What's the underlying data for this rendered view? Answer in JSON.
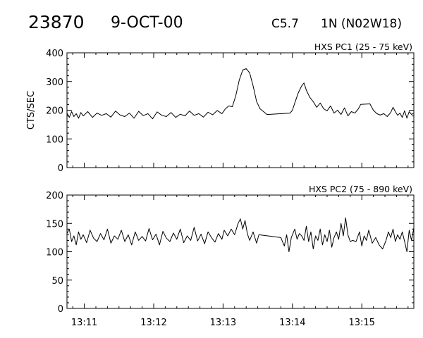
{
  "header": {
    "event_number": "23870",
    "date": "9-OCT-00",
    "goes_class": "C5.7",
    "location": "1N (N02W18)"
  },
  "chart_data": [
    {
      "type": "line",
      "title": "HXS PC1 (25 - 75 keV)",
      "xlabel": "",
      "ylabel": "CTS/SEC",
      "xlim": [
        "13:10:45",
        "13:15:45"
      ],
      "ylim": [
        0,
        400
      ],
      "yticks": [
        0,
        100,
        200,
        300,
        400
      ],
      "xtick_labels": [
        "13:11",
        "13:12",
        "13:13",
        "13:14",
        "13:15"
      ],
      "series": [
        {
          "points": [
            [
              "13:10:45",
              190
            ],
            [
              "13:10:47",
              175
            ],
            [
              "13:10:49",
              195
            ],
            [
              "13:10:51",
              178
            ],
            [
              "13:10:53",
              188
            ],
            [
              "13:10:55",
              172
            ],
            [
              "13:10:57",
              192
            ],
            [
              "13:10:59",
              180
            ],
            [
              "13:11:03",
              195
            ],
            [
              "13:11:07",
              175
            ],
            [
              "13:11:11",
              190
            ],
            [
              "13:11:15",
              182
            ],
            [
              "13:11:19",
              188
            ],
            [
              "13:11:23",
              176
            ],
            [
              "13:11:27",
              197
            ],
            [
              "13:11:31",
              183
            ],
            [
              "13:11:35",
              178
            ],
            [
              "13:11:39",
              190
            ],
            [
              "13:11:43",
              172
            ],
            [
              "13:11:47",
              196
            ],
            [
              "13:11:51",
              181
            ],
            [
              "13:11:55",
              188
            ],
            [
              "13:11:59",
              170
            ],
            [
              "13:12:03",
              194
            ],
            [
              "13:12:07",
              182
            ],
            [
              "13:12:11",
              178
            ],
            [
              "13:12:15",
              192
            ],
            [
              "13:12:19",
              175
            ],
            [
              "13:12:23",
              186
            ],
            [
              "13:12:27",
              180
            ],
            [
              "13:12:31",
              197
            ],
            [
              "13:12:35",
              182
            ],
            [
              "13:12:39",
              188
            ],
            [
              "13:12:43",
              176
            ],
            [
              "13:12:47",
              193
            ],
            [
              "13:12:51",
              184
            ],
            [
              "13:12:55",
              199
            ],
            [
              "13:12:59",
              188
            ],
            [
              "13:13:02",
              205
            ],
            [
              "13:13:05",
              215
            ],
            [
              "13:13:08",
              212
            ],
            [
              "13:13:11",
              250
            ],
            [
              "13:13:14",
              305
            ],
            [
              "13:13:17",
              340
            ],
            [
              "13:13:20",
              345
            ],
            [
              "13:13:23",
              330
            ],
            [
              "13:13:26",
              285
            ],
            [
              "13:13:29",
              230
            ],
            [
              "13:13:32",
              205
            ],
            [
              "13:13:35",
              195
            ],
            [
              "13:13:38",
              185
            ],
            [
              "13:13:58",
              190
            ],
            [
              "13:14:00",
              200
            ],
            [
              "13:14:02",
              225
            ],
            [
              "13:14:05",
              260
            ],
            [
              "13:14:08",
              285
            ],
            [
              "13:14:10",
              295
            ],
            [
              "13:14:12",
              270
            ],
            [
              "13:14:15",
              245
            ],
            [
              "13:14:18",
              230
            ],
            [
              "13:14:21",
              210
            ],
            [
              "13:14:24",
              225
            ],
            [
              "13:14:27",
              205
            ],
            [
              "13:14:30",
              198
            ],
            [
              "13:14:33",
              215
            ],
            [
              "13:14:36",
              190
            ],
            [
              "13:14:39",
              200
            ],
            [
              "13:14:42",
              185
            ],
            [
              "13:14:45",
              208
            ],
            [
              "13:14:48",
              180
            ],
            [
              "13:14:51",
              195
            ],
            [
              "13:14:54",
              190
            ],
            [
              "13:14:57",
              205
            ],
            [
              "13:14:59",
              220
            ],
            [
              "13:15:07",
              222
            ],
            [
              "13:15:10",
              200
            ],
            [
              "13:15:13",
              188
            ],
            [
              "13:15:16",
              183
            ],
            [
              "13:15:19",
              188
            ],
            [
              "13:15:22",
              178
            ],
            [
              "13:15:25",
              192
            ],
            [
              "13:15:27",
              210
            ],
            [
              "13:15:29",
              195
            ],
            [
              "13:15:31",
              182
            ],
            [
              "13:15:33",
              190
            ],
            [
              "13:15:35",
              175
            ],
            [
              "13:15:37",
              198
            ],
            [
              "13:15:39",
              172
            ],
            [
              "13:15:41",
              195
            ],
            [
              "13:15:43",
              185
            ],
            [
              "13:15:45",
              190
            ]
          ]
        }
      ]
    },
    {
      "type": "line",
      "title": "HXS PC2 (75 - 890 keV)",
      "xlabel": "",
      "ylabel": "",
      "xlim": [
        "13:10:45",
        "13:15:45"
      ],
      "ylim": [
        0,
        200
      ],
      "yticks": [
        0,
        50,
        100,
        150,
        200
      ],
      "xtick_labels": [
        "13:11",
        "13:12",
        "13:13",
        "13:14",
        "13:15"
      ],
      "series": [
        {
          "points": [
            [
              "13:10:45",
              132
            ],
            [
              "13:10:47",
              140
            ],
            [
              "13:10:49",
              118
            ],
            [
              "13:10:51",
              128
            ],
            [
              "13:10:53",
              112
            ],
            [
              "13:10:55",
              135
            ],
            [
              "13:10:57",
              122
            ],
            [
              "13:10:59",
              130
            ],
            [
              "13:11:02",
              116
            ],
            [
              "13:11:05",
              138
            ],
            [
              "13:11:08",
              124
            ],
            [
              "13:11:11",
              118
            ],
            [
              "13:11:14",
              132
            ],
            [
              "13:11:17",
              121
            ],
            [
              "13:11:20",
              140
            ],
            [
              "13:11:23",
              115
            ],
            [
              "13:11:26",
              128
            ],
            [
              "13:11:29",
              122
            ],
            [
              "13:11:32",
              138
            ],
            [
              "13:11:35",
              118
            ],
            [
              "13:11:38",
              130
            ],
            [
              "13:11:41",
              112
            ],
            [
              "13:11:44",
              135
            ],
            [
              "13:11:47",
              120
            ],
            [
              "13:11:50",
              127
            ],
            [
              "13:11:53",
              119
            ],
            [
              "13:11:56",
              141
            ],
            [
              "13:11:59",
              121
            ],
            [
              "13:12:02",
              131
            ],
            [
              "13:12:05",
              112
            ],
            [
              "13:12:08",
              136
            ],
            [
              "13:12:11",
              124
            ],
            [
              "13:12:14",
              118
            ],
            [
              "13:12:17",
              133
            ],
            [
              "13:12:20",
              122
            ],
            [
              "13:12:23",
              140
            ],
            [
              "13:12:26",
              116
            ],
            [
              "13:12:29",
              128
            ],
            [
              "13:12:32",
              120
            ],
            [
              "13:12:35",
              143
            ],
            [
              "13:12:38",
              119
            ],
            [
              "13:12:41",
              131
            ],
            [
              "13:12:44",
              114
            ],
            [
              "13:12:47",
              135
            ],
            [
              "13:12:50",
              125
            ],
            [
              "13:12:53",
              117
            ],
            [
              "13:12:56",
              132
            ],
            [
              "13:12:59",
              122
            ],
            [
              "13:13:01",
              138
            ],
            [
              "13:13:04",
              128
            ],
            [
              "13:13:07",
              140
            ],
            [
              "13:13:10",
              130
            ],
            [
              "13:13:13",
              150
            ],
            [
              "13:13:15",
              158
            ],
            [
              "13:13:17",
              140
            ],
            [
              "13:13:19",
              155
            ],
            [
              "13:13:21",
              132
            ],
            [
              "13:13:23",
              120
            ],
            [
              "13:13:26",
              135
            ],
            [
              "13:13:29",
              115
            ],
            [
              "13:13:31",
              130
            ],
            [
              "13:13:50",
              125
            ],
            [
              "13:13:53",
              110
            ],
            [
              "13:13:55",
              130
            ],
            [
              "13:13:57",
              100
            ],
            [
              "13:13:59",
              125
            ],
            [
              "13:14:02",
              140
            ],
            [
              "13:14:04",
              122
            ],
            [
              "13:14:06",
              132
            ],
            [
              "13:14:08",
              128
            ],
            [
              "13:14:10",
              120
            ],
            [
              "13:14:12",
              145
            ],
            [
              "13:14:14",
              118
            ],
            [
              "13:14:16",
              135
            ],
            [
              "13:14:18",
              105
            ],
            [
              "13:14:20",
              128
            ],
            [
              "13:14:22",
              120
            ],
            [
              "13:14:24",
              140
            ],
            [
              "13:14:26",
              112
            ],
            [
              "13:14:28",
              130
            ],
            [
              "13:14:30",
              118
            ],
            [
              "13:14:32",
              138
            ],
            [
              "13:14:34",
              108
            ],
            [
              "13:14:36",
              125
            ],
            [
              "13:14:38",
              135
            ],
            [
              "13:14:40",
              122
            ],
            [
              "13:14:42",
              150
            ],
            [
              "13:14:44",
              128
            ],
            [
              "13:14:46",
              160
            ],
            [
              "13:14:48",
              130
            ],
            [
              "13:14:50",
              118
            ],
            [
              "13:14:52",
              120
            ],
            [
              "13:14:55",
              118
            ],
            [
              "13:14:58",
              135
            ],
            [
              "13:15:00",
              110
            ],
            [
              "13:15:02",
              128
            ],
            [
              "13:15:04",
              120
            ],
            [
              "13:15:06",
              138
            ],
            [
              "13:15:09",
              115
            ],
            [
              "13:15:12",
              125
            ],
            [
              "13:15:15",
              112
            ],
            [
              "13:15:18",
              105
            ],
            [
              "13:15:21",
              120
            ],
            [
              "13:15:23",
              135
            ],
            [
              "13:15:25",
              125
            ],
            [
              "13:15:27",
              140
            ],
            [
              "13:15:29",
              118
            ],
            [
              "13:15:31",
              130
            ],
            [
              "13:15:33",
              122
            ],
            [
              "13:15:35",
              135
            ],
            [
              "13:15:37",
              118
            ],
            [
              "13:15:39",
              100
            ],
            [
              "13:15:41",
              138
            ],
            [
              "13:15:43",
              120
            ],
            [
              "13:15:45",
              142
            ]
          ]
        }
      ]
    }
  ]
}
